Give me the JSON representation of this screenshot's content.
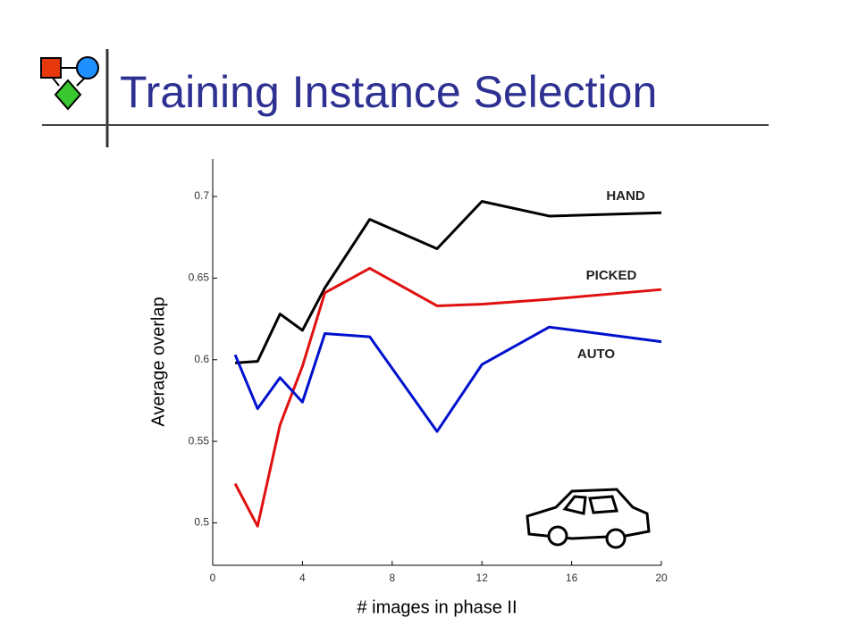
{
  "title": "Training Instance Selection",
  "chart_data": {
    "type": "line",
    "xlabel": "# images in phase II",
    "ylabel": "Average overlap",
    "x": [
      1,
      2,
      3,
      4,
      5,
      7,
      10,
      12,
      15,
      20
    ],
    "xlim": [
      0,
      20
    ],
    "xticks": [
      0,
      4,
      8,
      12,
      16,
      20
    ],
    "ylim": [
      0.474,
      0.723
    ],
    "yticks": [
      0.5,
      0.55,
      0.6,
      0.65,
      0.7
    ],
    "grid": false,
    "series": [
      {
        "name": "HAND",
        "color": "#000000",
        "values": [
          0.598,
          0.599,
          0.628,
          0.618,
          0.644,
          0.686,
          0.668,
          0.697,
          0.688,
          0.69
        ]
      },
      {
        "name": "PICKED",
        "color": "#e01010",
        "values": [
          0.524,
          0.498,
          0.56,
          0.596,
          0.641,
          0.656,
          0.633,
          0.634,
          0.637,
          0.643
        ]
      },
      {
        "name": "AUTO",
        "color": "#0010cc",
        "values": [
          0.603,
          0.57,
          0.589,
          0.574,
          0.616,
          0.614,
          0.556,
          0.597,
          0.62,
          0.611
        ]
      }
    ]
  }
}
